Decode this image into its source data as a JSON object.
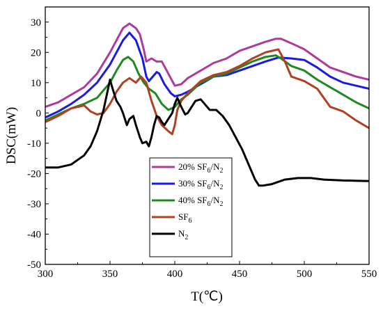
{
  "chart_data": {
    "type": "line",
    "xlabel": "T(℃)",
    "ylabel": "DSC(mW)",
    "xlim": [
      300,
      550
    ],
    "ylim": [
      -50,
      35
    ],
    "xticks": [
      300,
      350,
      400,
      450,
      500,
      550
    ],
    "yticks": [
      -50,
      -40,
      -30,
      -20,
      -10,
      0,
      10,
      20,
      30
    ],
    "grid": false,
    "legend_position": "lower-left-center",
    "series": [
      {
        "name": "20% SF6/N2",
        "legend": {
          "base": "20% SF",
          "sub1": "6",
          "mid": "/N",
          "sub2": "2"
        },
        "color": "#b03a9c",
        "points": [
          [
            300,
            2
          ],
          [
            310,
            3.5
          ],
          [
            320,
            6
          ],
          [
            330,
            8.5
          ],
          [
            340,
            13
          ],
          [
            350,
            20
          ],
          [
            355,
            24
          ],
          [
            360,
            28
          ],
          [
            365,
            29.5
          ],
          [
            370,
            28
          ],
          [
            373,
            26
          ],
          [
            376,
            21
          ],
          [
            378,
            17
          ],
          [
            382,
            18
          ],
          [
            386,
            17
          ],
          [
            390,
            17
          ],
          [
            395,
            13
          ],
          [
            400,
            9
          ],
          [
            405,
            9.5
          ],
          [
            410,
            11.5
          ],
          [
            420,
            14
          ],
          [
            430,
            16.5
          ],
          [
            440,
            18
          ],
          [
            450,
            20.5
          ],
          [
            460,
            22
          ],
          [
            470,
            23.5
          ],
          [
            478,
            24.5
          ],
          [
            482,
            24.5
          ],
          [
            490,
            23
          ],
          [
            500,
            21
          ],
          [
            510,
            18
          ],
          [
            520,
            15
          ],
          [
            530,
            13.5
          ],
          [
            540,
            12
          ],
          [
            550,
            11
          ]
        ]
      },
      {
        "name": "30% SF6/N2",
        "legend": {
          "base": "30% SF",
          "sub1": "6",
          "mid": "/N",
          "sub2": "2"
        },
        "color": "#1a1ae6",
        "points": [
          [
            300,
            -1.5
          ],
          [
            310,
            0.5
          ],
          [
            320,
            3
          ],
          [
            330,
            6
          ],
          [
            340,
            10
          ],
          [
            350,
            16
          ],
          [
            355,
            20
          ],
          [
            360,
            24
          ],
          [
            365,
            26.5
          ],
          [
            370,
            24
          ],
          [
            375,
            18
          ],
          [
            378,
            12
          ],
          [
            380,
            10.5
          ],
          [
            383,
            12
          ],
          [
            386,
            13.5
          ],
          [
            388,
            13
          ],
          [
            392,
            9.5
          ],
          [
            397,
            6.5
          ],
          [
            400,
            5.5
          ],
          [
            405,
            6
          ],
          [
            410,
            7
          ],
          [
            420,
            9.5
          ],
          [
            430,
            12
          ],
          [
            440,
            12.5
          ],
          [
            450,
            14
          ],
          [
            460,
            15.5
          ],
          [
            470,
            17
          ],
          [
            480,
            18.3
          ],
          [
            490,
            18
          ],
          [
            500,
            17.5
          ],
          [
            510,
            15
          ],
          [
            520,
            12
          ],
          [
            530,
            10
          ],
          [
            540,
            9
          ],
          [
            550,
            8
          ]
        ]
      },
      {
        "name": "40% SF6/N2",
        "legend": {
          "base": "40% SF",
          "sub1": "6",
          "mid": "/N",
          "sub2": "2"
        },
        "color": "#1e8a1e",
        "points": [
          [
            300,
            -2.5
          ],
          [
            310,
            -0.5
          ],
          [
            320,
            1.5
          ],
          [
            330,
            3
          ],
          [
            340,
            5
          ],
          [
            350,
            10
          ],
          [
            355,
            14
          ],
          [
            360,
            17.5
          ],
          [
            364,
            18.5
          ],
          [
            368,
            17
          ],
          [
            372,
            13
          ],
          [
            376,
            10
          ],
          [
            380,
            8
          ],
          [
            385,
            6.5
          ],
          [
            390,
            3
          ],
          [
            395,
            1
          ],
          [
            400,
            2
          ],
          [
            405,
            4.5
          ],
          [
            410,
            6
          ],
          [
            420,
            10
          ],
          [
            430,
            12
          ],
          [
            440,
            13
          ],
          [
            450,
            15
          ],
          [
            460,
            17
          ],
          [
            470,
            18.5
          ],
          [
            478,
            19
          ],
          [
            482,
            18
          ],
          [
            490,
            15.5
          ],
          [
            500,
            14
          ],
          [
            510,
            11
          ],
          [
            520,
            8.5
          ],
          [
            530,
            6
          ],
          [
            540,
            3.5
          ],
          [
            550,
            1.5
          ]
        ]
      },
      {
        "name": "SF6",
        "legend": {
          "base": "SF",
          "sub1": "6",
          "mid": "",
          "sub2": ""
        },
        "color": "#b04020",
        "points": [
          [
            300,
            -3
          ],
          [
            310,
            -1
          ],
          [
            320,
            1.5
          ],
          [
            330,
            2.5
          ],
          [
            335,
            0.5
          ],
          [
            340,
            -0.5
          ],
          [
            345,
            0
          ],
          [
            350,
            3
          ],
          [
            355,
            7
          ],
          [
            360,
            10
          ],
          [
            365,
            11.5
          ],
          [
            370,
            10
          ],
          [
            374,
            12
          ],
          [
            378,
            10
          ],
          [
            382,
            4
          ],
          [
            386,
            -1
          ],
          [
            390,
            -4
          ],
          [
            395,
            -6
          ],
          [
            398,
            -7
          ],
          [
            400,
            -4
          ],
          [
            402,
            1
          ],
          [
            405,
            4
          ],
          [
            410,
            6.5
          ],
          [
            420,
            10.5
          ],
          [
            430,
            12.5
          ],
          [
            440,
            13.5
          ],
          [
            450,
            15.5
          ],
          [
            460,
            18
          ],
          [
            470,
            20
          ],
          [
            480,
            21
          ],
          [
            485,
            17
          ],
          [
            490,
            12
          ],
          [
            500,
            10.5
          ],
          [
            510,
            8
          ],
          [
            520,
            2
          ],
          [
            530,
            0.5
          ],
          [
            540,
            -2.5
          ],
          [
            550,
            -5
          ]
        ]
      },
      {
        "name": "N2",
        "legend": {
          "base": "N",
          "sub1": "2",
          "mid": "",
          "sub2": ""
        },
        "color": "#000000",
        "points": [
          [
            300,
            -18
          ],
          [
            310,
            -18
          ],
          [
            320,
            -17
          ],
          [
            330,
            -14
          ],
          [
            335,
            -11
          ],
          [
            340,
            -6
          ],
          [
            345,
            1
          ],
          [
            350,
            11
          ],
          [
            352,
            8
          ],
          [
            355,
            4
          ],
          [
            358,
            2
          ],
          [
            360,
            0
          ],
          [
            363,
            -4
          ],
          [
            365,
            -2
          ],
          [
            368,
            -1
          ],
          [
            370,
            -4
          ],
          [
            373,
            -8
          ],
          [
            375,
            -10
          ],
          [
            378,
            -9.5
          ],
          [
            380,
            -11
          ],
          [
            382,
            -8
          ],
          [
            384,
            -4
          ],
          [
            386,
            -1
          ],
          [
            388,
            -1.5
          ],
          [
            390,
            -3
          ],
          [
            392,
            -4
          ],
          [
            395,
            -2
          ],
          [
            398,
            0
          ],
          [
            400,
            3
          ],
          [
            402,
            5
          ],
          [
            405,
            2
          ],
          [
            408,
            -0.5
          ],
          [
            410,
            0
          ],
          [
            413,
            2
          ],
          [
            416,
            4
          ],
          [
            420,
            4.5
          ],
          [
            423,
            3
          ],
          [
            427,
            1
          ],
          [
            432,
            1
          ],
          [
            437,
            -1
          ],
          [
            442,
            -4
          ],
          [
            447,
            -8
          ],
          [
            452,
            -12
          ],
          [
            457,
            -17
          ],
          [
            462,
            -22
          ],
          [
            465,
            -24
          ],
          [
            468,
            -24
          ],
          [
            475,
            -23.5
          ],
          [
            485,
            -22
          ],
          [
            495,
            -21.5
          ],
          [
            505,
            -21.5
          ],
          [
            515,
            -22
          ],
          [
            530,
            -22.3
          ],
          [
            550,
            -22.5
          ]
        ]
      }
    ]
  }
}
